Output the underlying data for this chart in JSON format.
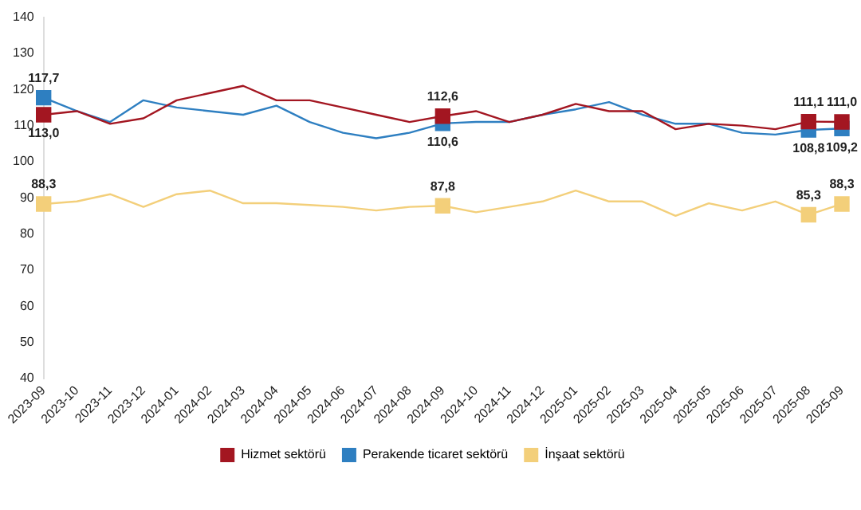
{
  "chart_data": {
    "type": "line",
    "categories": [
      "2023-09",
      "2023-10",
      "2023-11",
      "2023-12",
      "2024-01",
      "2024-02",
      "2024-03",
      "2024-04",
      "2024-05",
      "2024-06",
      "2024-07",
      "2024-08",
      "2024-09",
      "2024-10",
      "2024-11",
      "2024-12",
      "2025-01",
      "2025-02",
      "2025-03",
      "2025-04",
      "2025-05",
      "2025-06",
      "2025-07",
      "2025-08",
      "2025-09"
    ],
    "series": [
      {
        "name": "Hizmet sektörü",
        "color": "#a31621",
        "values": [
          113.0,
          114,
          110.5,
          112,
          117,
          119,
          121,
          117,
          117,
          115,
          113,
          111,
          112.6,
          114,
          111,
          113,
          116,
          114,
          114,
          109,
          110.5,
          110,
          109,
          111.1,
          111.0
        ],
        "value_labels": [
          "113,0",
          null,
          null,
          null,
          null,
          null,
          null,
          null,
          null,
          null,
          null,
          null,
          "112,6",
          null,
          null,
          null,
          null,
          null,
          null,
          null,
          null,
          null,
          null,
          "111,1",
          "111,0"
        ]
      },
      {
        "name": "Perakende ticaret sektörü",
        "color": "#2e7fc1",
        "values": [
          117.7,
          114,
          111,
          117,
          115,
          114,
          113,
          115.5,
          111,
          108,
          106.5,
          108,
          110.6,
          111,
          111,
          113,
          114.5,
          116.5,
          113,
          110.5,
          110.5,
          108,
          107.5,
          108.8,
          109.2
        ],
        "value_labels": [
          "117,7",
          null,
          null,
          null,
          null,
          null,
          null,
          null,
          null,
          null,
          null,
          null,
          "110,6",
          null,
          null,
          null,
          null,
          null,
          null,
          null,
          null,
          null,
          null,
          "108,8",
          "109,2"
        ]
      },
      {
        "name": "İnşaat sektörü",
        "color": "#f3cf7a",
        "values": [
          88.3,
          89,
          91,
          87.5,
          91,
          92,
          88.5,
          88.5,
          88,
          87.5,
          86.5,
          87.5,
          87.8,
          86,
          87.5,
          89,
          92,
          89,
          89,
          85,
          88.5,
          86.5,
          89,
          85.3,
          88.3
        ],
        "value_labels": [
          "88,3",
          null,
          null,
          null,
          null,
          null,
          null,
          null,
          null,
          null,
          null,
          null,
          "87,8",
          null,
          null,
          null,
          null,
          null,
          null,
          null,
          null,
          null,
          null,
          "85,3",
          "88,3"
        ]
      }
    ],
    "ylim": [
      40,
      140
    ],
    "yticks": [
      40,
      50,
      60,
      70,
      80,
      90,
      100,
      110,
      120,
      130,
      140
    ],
    "grid": false,
    "legend": "bottom",
    "line_style": "solid"
  }
}
